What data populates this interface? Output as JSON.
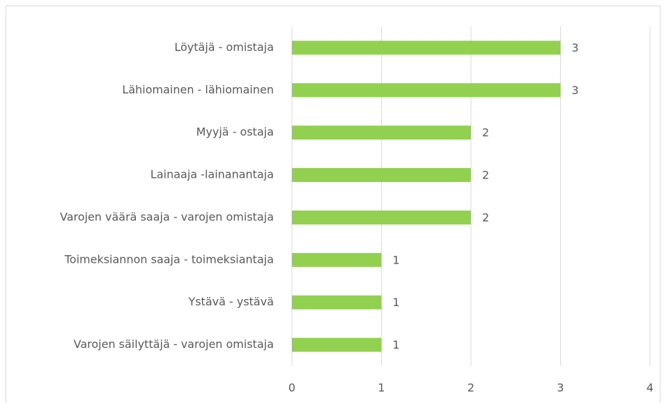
{
  "chart_data": {
    "type": "bar",
    "orientation": "horizontal",
    "categories": [
      "Löytäjä - omistaja",
      "Lähiomainen - lähiomainen",
      "Myyjä - ostaja",
      "Lainaaja -lainanantaja",
      "Varojen väärä saaja - varojen omistaja",
      "Toimeksiannon saaja - toimeksiantaja",
      "Ystävä - ystävä",
      "Varojen säilyttäjä - varojen omistaja"
    ],
    "values": [
      3,
      3,
      2,
      2,
      2,
      1,
      1,
      1
    ],
    "color": "#92d050",
    "xlim": [
      0,
      4
    ],
    "xticks": [
      0,
      1,
      2,
      3,
      4
    ],
    "grid": true,
    "data_labels": true
  }
}
